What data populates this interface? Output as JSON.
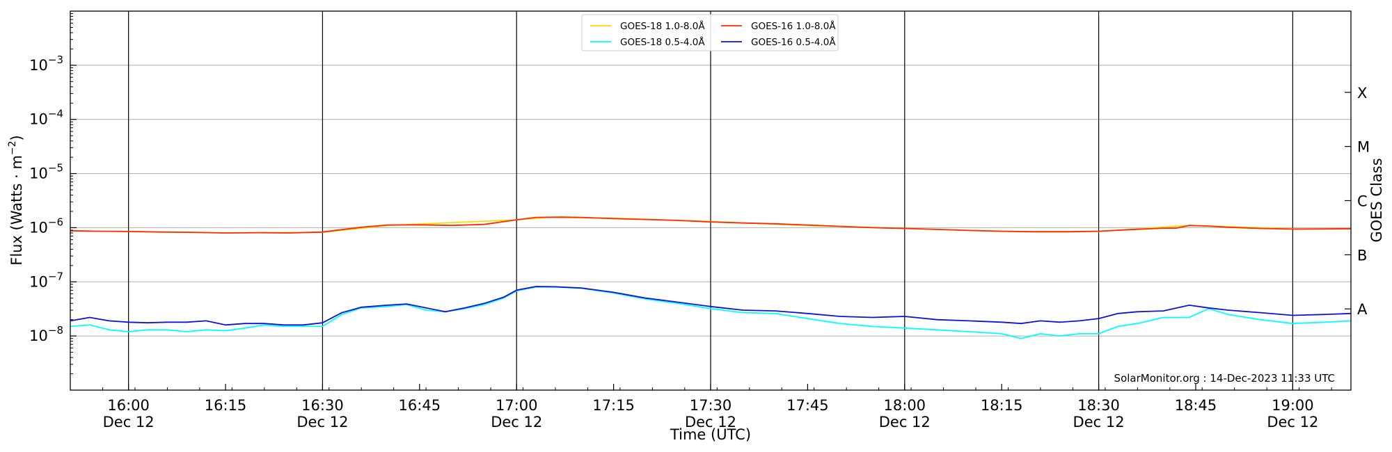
{
  "chart_data": {
    "type": "line",
    "title": "",
    "xlabel": "Time (UTC)",
    "ylabel": "Flux (Watts · m⁻²)",
    "ylabel_parts": {
      "base": "Flux (Watts · m",
      "sup": "−2",
      "end": ")"
    },
    "right_label": "GOES Class",
    "y_scale": "log",
    "ylim": [
      1e-09,
      0.01
    ],
    "xlim": [
      "15:51",
      "19:09"
    ],
    "y_ticks": [
      {
        "value": 1e-08,
        "base": "10",
        "sup": "−8"
      },
      {
        "value": 1e-07,
        "base": "10",
        "sup": "−7"
      },
      {
        "value": 1e-06,
        "base": "10",
        "sup": "−6"
      },
      {
        "value": 1e-05,
        "base": "10",
        "sup": "−5"
      },
      {
        "value": 0.0001,
        "base": "10",
        "sup": "−4"
      },
      {
        "value": 0.001,
        "base": "10",
        "sup": "−3"
      }
    ],
    "x_ticks": [
      {
        "time": "16:00",
        "label": "16:00",
        "date": "Dec 12"
      },
      {
        "time": "16:15",
        "label": "16:15",
        "date": ""
      },
      {
        "time": "16:30",
        "label": "16:30",
        "date": "Dec 12"
      },
      {
        "time": "16:45",
        "label": "16:45",
        "date": ""
      },
      {
        "time": "17:00",
        "label": "17:00",
        "date": "Dec 12"
      },
      {
        "time": "17:15",
        "label": "17:15",
        "date": ""
      },
      {
        "time": "17:30",
        "label": "17:30",
        "date": "Dec 12"
      },
      {
        "time": "17:45",
        "label": "17:45",
        "date": ""
      },
      {
        "time": "18:00",
        "label": "18:00",
        "date": "Dec 12"
      },
      {
        "time": "18:15",
        "label": "18:15",
        "date": ""
      },
      {
        "time": "18:30",
        "label": "18:30",
        "date": "Dec 12"
      },
      {
        "time": "18:45",
        "label": "18:45",
        "date": ""
      },
      {
        "time": "19:00",
        "label": "19:00",
        "date": "Dec 12"
      }
    ],
    "vertical_lines": [
      "16:00",
      "16:30",
      "17:00",
      "17:30",
      "18:00",
      "18:30",
      "19:00"
    ],
    "goes_classes": [
      {
        "label": "A",
        "value": 1e-08
      },
      {
        "label": "B",
        "value": 1e-07
      },
      {
        "label": "C",
        "value": 1e-06
      },
      {
        "label": "M",
        "value": 1e-05
      },
      {
        "label": "X",
        "value": 0.0001
      }
    ],
    "grid": "horizontal",
    "legend_position": "top-center",
    "legend": [
      {
        "name": "GOES-18 1.0-8.0Å",
        "color": "#ffd700"
      },
      {
        "name": "GOES-18 0.5-4.0Å",
        "color": "#00ffff"
      },
      {
        "name": "GOES-16 1.0-8.0Å",
        "color": "#ff2a00"
      },
      {
        "name": "GOES-16 0.5-4.0Å",
        "color": "#1010dd"
      }
    ],
    "series": [
      {
        "name": "GOES-18 1.0-8.0Å",
        "color": "#ffd700",
        "x": [
          "15:51",
          "16:00",
          "16:15",
          "16:30",
          "16:40",
          "17:00",
          "17:05",
          "17:15",
          "17:30",
          "17:45",
          "18:00",
          "18:15",
          "18:30",
          "18:44",
          "19:00",
          "19:09"
        ],
        "values": [
          8.7e-07,
          8.5e-07,
          8e-07,
          8.2e-07,
          1.1e-06,
          1.4e-06,
          1.55e-06,
          1.5e-06,
          1.3e-06,
          1.1e-06,
          9.7e-07,
          8.5e-07,
          8.5e-07,
          1.1e-06,
          9.5e-07,
          9.5e-07
        ]
      },
      {
        "name": "GOES-16 1.0-8.0Å",
        "color": "#ff2a00",
        "x": [
          "15:51",
          "15:55",
          "16:00",
          "16:05",
          "16:10",
          "16:15",
          "16:20",
          "16:25",
          "16:30",
          "16:33",
          "16:36",
          "16:40",
          "16:45",
          "16:50",
          "16:55",
          "17:00",
          "17:03",
          "17:07",
          "17:10",
          "17:15",
          "17:20",
          "17:25",
          "17:30",
          "17:35",
          "17:40",
          "17:45",
          "17:50",
          "17:55",
          "18:00",
          "18:05",
          "18:10",
          "18:15",
          "18:20",
          "18:25",
          "18:30",
          "18:35",
          "18:40",
          "18:42",
          "18:44",
          "18:47",
          "18:50",
          "18:55",
          "19:00",
          "19:05",
          "19:09"
        ],
        "values": [
          8.8e-07,
          8.6e-07,
          8.5e-07,
          8.3e-07,
          8.2e-07,
          8e-07,
          8.1e-07,
          8e-07,
          8.3e-07,
          9.2e-07,
          1.02e-06,
          1.12e-06,
          1.13e-06,
          1.1e-06,
          1.15e-06,
          1.4e-06,
          1.55e-06,
          1.57e-06,
          1.55e-06,
          1.47e-06,
          1.42e-06,
          1.36e-06,
          1.28e-06,
          1.22e-06,
          1.18e-06,
          1.12e-06,
          1.06e-06,
          1e-06,
          9.7e-07,
          9.3e-07,
          8.9e-07,
          8.6e-07,
          8.4e-07,
          8.4e-07,
          8.6e-07,
          9.2e-07,
          9.8e-07,
          9.8e-07,
          1.1e-06,
          1.07e-06,
          1.02e-06,
          9.7e-07,
          9.4e-07,
          9.5e-07,
          9.6e-07
        ]
      },
      {
        "name": "GOES-18 0.5-4.0Å",
        "color": "#00ffff",
        "x": [
          "15:51",
          "15:54",
          "15:57",
          "16:00",
          "16:03",
          "16:06",
          "16:09",
          "16:12",
          "16:15",
          "16:18",
          "16:21",
          "16:24",
          "16:27",
          "16:30",
          "16:33",
          "16:36",
          "16:40",
          "16:43",
          "16:46",
          "16:49",
          "16:52",
          "16:55",
          "16:58",
          "17:00",
          "17:03",
          "17:06",
          "17:10",
          "17:15",
          "17:20",
          "17:25",
          "17:30",
          "17:35",
          "17:40",
          "17:45",
          "17:50",
          "17:55",
          "18:00",
          "18:05",
          "18:10",
          "18:15",
          "18:18",
          "18:21",
          "18:24",
          "18:27",
          "18:30",
          "18:33",
          "18:36",
          "18:40",
          "18:44",
          "18:47",
          "18:50",
          "18:55",
          "19:00",
          "19:05",
          "19:09"
        ],
        "values": [
          1.5e-08,
          1.6e-08,
          1.3e-08,
          1.2e-08,
          1.3e-08,
          1.3e-08,
          1.2e-08,
          1.3e-08,
          1.25e-08,
          1.4e-08,
          1.6e-08,
          1.5e-08,
          1.5e-08,
          1.5e-08,
          2.5e-08,
          3.3e-08,
          3.5e-08,
          3.8e-08,
          3e-08,
          2.8e-08,
          3.2e-08,
          3.8e-08,
          5e-08,
          6.8e-08,
          8e-08,
          8e-08,
          7.6e-08,
          6.2e-08,
          4.8e-08,
          4e-08,
          3.2e-08,
          2.7e-08,
          2.6e-08,
          2.1e-08,
          1.7e-08,
          1.5e-08,
          1.4e-08,
          1.3e-08,
          1.2e-08,
          1.1e-08,
          9e-09,
          1.1e-08,
          1e-08,
          1.1e-08,
          1.1e-08,
          1.5e-08,
          1.7e-08,
          2.2e-08,
          2.2e-08,
          3.2e-08,
          2.5e-08,
          2e-08,
          1.7e-08,
          1.8e-08,
          1.9e-08
        ]
      },
      {
        "name": "GOES-16 0.5-4.0Å",
        "color": "#1010dd",
        "x": [
          "15:51",
          "15:54",
          "15:57",
          "16:00",
          "16:03",
          "16:06",
          "16:09",
          "16:12",
          "16:15",
          "16:18",
          "16:21",
          "16:24",
          "16:27",
          "16:30",
          "16:33",
          "16:36",
          "16:40",
          "16:43",
          "16:46",
          "16:49",
          "16:52",
          "16:55",
          "16:58",
          "17:00",
          "17:03",
          "17:06",
          "17:10",
          "17:15",
          "17:20",
          "17:25",
          "17:30",
          "17:35",
          "17:40",
          "17:45",
          "17:50",
          "17:55",
          "18:00",
          "18:05",
          "18:10",
          "18:15",
          "18:18",
          "18:21",
          "18:24",
          "18:27",
          "18:30",
          "18:33",
          "18:36",
          "18:40",
          "18:44",
          "18:47",
          "18:50",
          "18:55",
          "19:00",
          "19:05",
          "19:09"
        ],
        "values": [
          1.9e-08,
          2.2e-08,
          1.9e-08,
          1.8e-08,
          1.75e-08,
          1.8e-08,
          1.8e-08,
          1.9e-08,
          1.6e-08,
          1.7e-08,
          1.7e-08,
          1.6e-08,
          1.6e-08,
          1.75e-08,
          2.7e-08,
          3.4e-08,
          3.7e-08,
          3.9e-08,
          3.3e-08,
          2.8e-08,
          3.3e-08,
          4e-08,
          5.2e-08,
          7e-08,
          8.2e-08,
          8.1e-08,
          7.7e-08,
          6.4e-08,
          5e-08,
          4.2e-08,
          3.5e-08,
          3e-08,
          2.9e-08,
          2.6e-08,
          2.3e-08,
          2.2e-08,
          2.3e-08,
          2e-08,
          1.9e-08,
          1.8e-08,
          1.7e-08,
          1.9e-08,
          1.8e-08,
          1.9e-08,
          2.1e-08,
          2.6e-08,
          2.8e-08,
          2.9e-08,
          3.7e-08,
          3.3e-08,
          3e-08,
          2.7e-08,
          2.4e-08,
          2.5e-08,
          2.6e-08
        ]
      }
    ]
  },
  "credit": "SolarMonitor.org : 14-Dec-2023 11:33 UTC"
}
